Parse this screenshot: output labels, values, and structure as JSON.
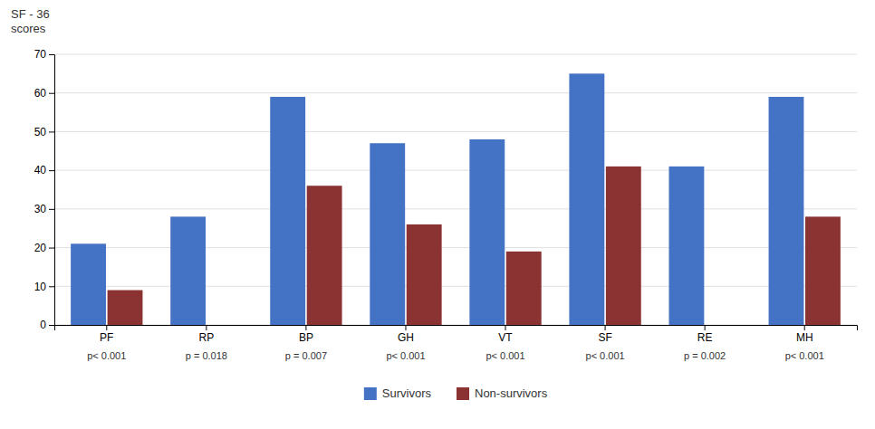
{
  "chart_data": {
    "type": "bar",
    "categories": [
      "PF",
      "RP",
      "BP",
      "GH",
      "VT",
      "SF",
      "RE",
      "MH"
    ],
    "annotations": [
      "p< 0.001",
      "p = 0.018",
      "p = 0.007",
      "p< 0.001",
      "p< 0.001",
      "p< 0.001",
      "p = 0.002",
      "p< 0.001"
    ],
    "series": [
      {
        "name": "Survivors",
        "color": "#4472C4",
        "values": [
          21,
          28,
          59,
          47,
          48,
          65,
          41,
          59
        ]
      },
      {
        "name": "Non-survivors",
        "color": "#8B3232",
        "values": [
          9,
          0,
          36,
          26,
          19,
          41,
          0,
          28
        ]
      }
    ],
    "ylabel": [
      "SF - 36",
      "scores"
    ],
    "ylim": [
      0,
      70
    ],
    "yticks": [
      0,
      10,
      20,
      30,
      40,
      50,
      60,
      70
    ],
    "grid": true,
    "legend": "bottom"
  }
}
